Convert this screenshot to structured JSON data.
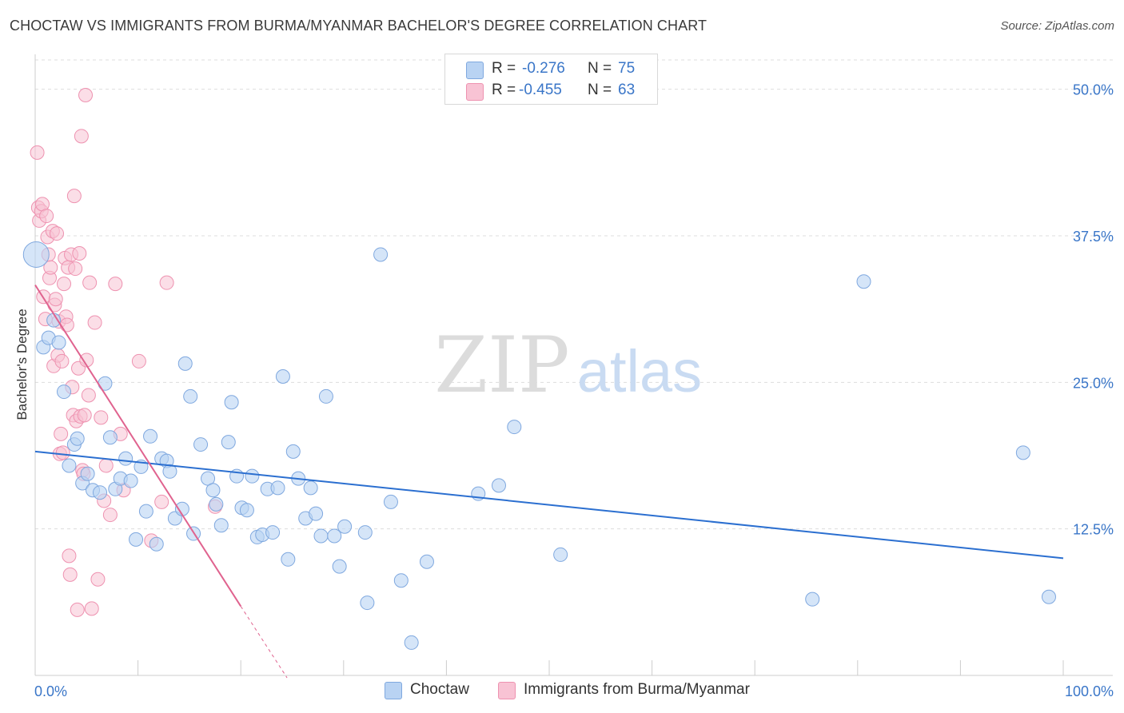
{
  "title": "CHOCTAW VS IMMIGRANTS FROM BURMA/MYANMAR BACHELOR'S DEGREE CORRELATION CHART",
  "source": "Source: ZipAtlas.com",
  "watermark": {
    "zip": "ZIP",
    "atlas": "atlas"
  },
  "colors": {
    "blue_fill": "#b9d3f3",
    "blue_stroke": "#7fa8df",
    "blue_line": "#2b6fd0",
    "pink_fill": "#f8c3d4",
    "pink_stroke": "#ee92b0",
    "pink_line": "#e0638f",
    "value_text": "#3a76c8",
    "grid": "#dddddd"
  },
  "legend": {
    "rows": [
      {
        "r_label": "R =",
        "r_value": "-0.276",
        "n_label": "N =",
        "n_value": "75"
      },
      {
        "r_label": "R =",
        "r_value": "-0.455",
        "n_label": "N =",
        "n_value": "63"
      }
    ]
  },
  "bottom_legend": [
    "Choctaw",
    "Immigrants from Burma/Myanmar"
  ],
  "chart_data": {
    "type": "scatter",
    "title": "CHOCTAW VS IMMIGRANTS FROM BURMA/MYANMAR BACHELOR'S DEGREE CORRELATION CHART",
    "xlabel": "",
    "ylabel": "Bachelor's Degree",
    "xlim": [
      0,
      100
    ],
    "ylim": [
      0,
      52.5
    ],
    "x_tick_labels": [
      "0.0%",
      "100.0%"
    ],
    "y_ticks": [
      12.5,
      25.0,
      37.5,
      50.0
    ],
    "y_tick_labels": [
      "12.5%",
      "25.0%",
      "37.5%",
      "50.0%"
    ],
    "grid": true,
    "legend_position": "top-center",
    "series": [
      {
        "name": "Choctaw",
        "color": "#b9d3f3",
        "r": -0.276,
        "n": 75,
        "trend": {
          "x0": 0,
          "y0": 19.1,
          "x1": 100,
          "y1": 10.0
        },
        "points": [
          [
            0.1,
            35.9
          ],
          [
            0.8,
            28.0
          ],
          [
            1.3,
            28.8
          ],
          [
            1.8,
            30.3
          ],
          [
            2.3,
            28.4
          ],
          [
            2.8,
            24.2
          ],
          [
            3.3,
            17.9
          ],
          [
            3.8,
            19.7
          ],
          [
            4.1,
            20.2
          ],
          [
            4.6,
            16.4
          ],
          [
            5.1,
            17.2
          ],
          [
            5.6,
            15.8
          ],
          [
            6.3,
            15.6
          ],
          [
            6.8,
            24.9
          ],
          [
            7.3,
            20.3
          ],
          [
            7.8,
            15.9
          ],
          [
            8.3,
            16.8
          ],
          [
            8.8,
            18.5
          ],
          [
            9.3,
            16.6
          ],
          [
            9.8,
            11.6
          ],
          [
            10.3,
            17.8
          ],
          [
            10.8,
            14.0
          ],
          [
            11.2,
            20.4
          ],
          [
            11.8,
            11.2
          ],
          [
            12.3,
            18.5
          ],
          [
            12.8,
            18.3
          ],
          [
            13.1,
            17.4
          ],
          [
            13.6,
            13.4
          ],
          [
            14.3,
            14.2
          ],
          [
            14.6,
            26.6
          ],
          [
            15.1,
            23.8
          ],
          [
            15.4,
            12.1
          ],
          [
            16.1,
            19.7
          ],
          [
            16.8,
            16.8
          ],
          [
            17.3,
            15.8
          ],
          [
            17.6,
            14.6
          ],
          [
            18.1,
            12.8
          ],
          [
            18.8,
            19.9
          ],
          [
            19.1,
            23.3
          ],
          [
            19.6,
            17.0
          ],
          [
            20.1,
            14.3
          ],
          [
            20.6,
            14.1
          ],
          [
            21.1,
            17.0
          ],
          [
            21.6,
            11.8
          ],
          [
            22.1,
            12.0
          ],
          [
            22.6,
            15.9
          ],
          [
            23.1,
            12.2
          ],
          [
            23.6,
            16.0
          ],
          [
            24.1,
            25.5
          ],
          [
            24.6,
            9.9
          ],
          [
            25.1,
            19.1
          ],
          [
            25.6,
            16.8
          ],
          [
            26.3,
            13.4
          ],
          [
            26.8,
            16.0
          ],
          [
            27.3,
            13.8
          ],
          [
            27.8,
            11.9
          ],
          [
            28.3,
            23.8
          ],
          [
            29.1,
            11.9
          ],
          [
            29.6,
            9.3
          ],
          [
            30.1,
            12.7
          ],
          [
            32.1,
            12.2
          ],
          [
            32.3,
            6.2
          ],
          [
            33.6,
            35.9
          ],
          [
            34.6,
            14.8
          ],
          [
            35.6,
            8.1
          ],
          [
            36.6,
            2.8
          ],
          [
            38.1,
            9.7
          ],
          [
            43.1,
            15.5
          ],
          [
            45.1,
            16.2
          ],
          [
            46.6,
            21.2
          ],
          [
            51.1,
            10.3
          ],
          [
            75.6,
            6.5
          ],
          [
            80.6,
            33.6
          ],
          [
            96.1,
            19.0
          ],
          [
            98.6,
            6.7
          ]
        ]
      },
      {
        "name": "Immigrants from Burma/Myanmar",
        "color": "#f8c3d4",
        "r": -0.455,
        "n": 63,
        "trend": {
          "x0": 0,
          "y0": 33.3,
          "x1": 20,
          "y1": 5.9,
          "dash_x1": 24.5,
          "dash_y1": -0.2
        },
        "points": [
          [
            0.2,
            44.6
          ],
          [
            0.3,
            39.9
          ],
          [
            0.4,
            38.8
          ],
          [
            0.6,
            39.6
          ],
          [
            0.7,
            40.2
          ],
          [
            0.8,
            32.3
          ],
          [
            1.0,
            30.4
          ],
          [
            1.1,
            39.2
          ],
          [
            1.2,
            37.4
          ],
          [
            1.3,
            35.9
          ],
          [
            1.4,
            33.9
          ],
          [
            1.5,
            34.8
          ],
          [
            1.7,
            37.9
          ],
          [
            1.8,
            26.4
          ],
          [
            1.9,
            31.6
          ],
          [
            2.0,
            32.1
          ],
          [
            2.1,
            37.7
          ],
          [
            2.2,
            27.3
          ],
          [
            2.3,
            30.2
          ],
          [
            2.4,
            18.9
          ],
          [
            2.5,
            20.6
          ],
          [
            2.6,
            26.8
          ],
          [
            2.7,
            19.0
          ],
          [
            2.8,
            33.4
          ],
          [
            2.9,
            35.6
          ],
          [
            3.0,
            30.6
          ],
          [
            3.1,
            29.9
          ],
          [
            3.2,
            34.8
          ],
          [
            3.3,
            10.2
          ],
          [
            3.4,
            8.6
          ],
          [
            3.5,
            35.9
          ],
          [
            3.6,
            24.6
          ],
          [
            3.7,
            22.2
          ],
          [
            3.8,
            40.9
          ],
          [
            3.9,
            34.7
          ],
          [
            4.0,
            21.7
          ],
          [
            4.1,
            5.6
          ],
          [
            4.2,
            26.2
          ],
          [
            4.3,
            36.0
          ],
          [
            4.4,
            22.1
          ],
          [
            4.5,
            46.0
          ],
          [
            4.6,
            17.5
          ],
          [
            4.7,
            17.2
          ],
          [
            4.8,
            22.2
          ],
          [
            4.9,
            49.5
          ],
          [
            5.0,
            26.9
          ],
          [
            5.2,
            23.9
          ],
          [
            5.3,
            33.5
          ],
          [
            5.5,
            5.7
          ],
          [
            5.8,
            30.1
          ],
          [
            6.1,
            8.2
          ],
          [
            6.4,
            22.0
          ],
          [
            6.7,
            14.9
          ],
          [
            6.9,
            17.9
          ],
          [
            7.3,
            13.7
          ],
          [
            7.8,
            33.4
          ],
          [
            8.3,
            20.6
          ],
          [
            8.6,
            15.8
          ],
          [
            10.1,
            26.8
          ],
          [
            11.3,
            11.5
          ],
          [
            12.3,
            14.8
          ],
          [
            12.8,
            33.5
          ],
          [
            17.5,
            14.4
          ]
        ]
      }
    ]
  }
}
